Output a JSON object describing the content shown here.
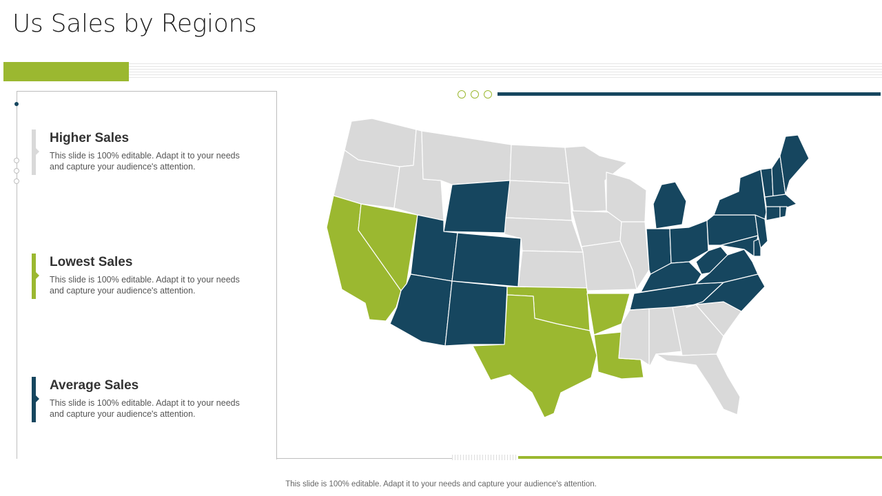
{
  "slide": {
    "title": "Us Sales by Regions",
    "footer": "This slide is 100% editable. Adapt it to your needs and capture your audience's attention."
  },
  "colors": {
    "accent_green": "#9bb830",
    "navy": "#16465f",
    "gray_state": "#d9d9d9",
    "gray_line": "#bdbdbd"
  },
  "legend": [
    {
      "title": "Higher Sales",
      "description": "This slide is 100% editable. Adapt it to your needs and capture your audience's attention.",
      "color": "#d9d9d9"
    },
    {
      "title": "Lowest Sales",
      "description": "This slide is 100% editable. Adapt it to your needs and capture your audience's attention.",
      "color": "#9bb830"
    },
    {
      "title": "Average Sales",
      "description": "This slide is 100% editable. Adapt it to your needs and capture your audience's attention.",
      "color": "#16465f"
    }
  ],
  "map": {
    "higher_sales_states": [
      "WA",
      "OR",
      "ID",
      "MT",
      "ND",
      "SD",
      "NE",
      "KS",
      "MN",
      "IA",
      "MO",
      "WI",
      "IL",
      "MS",
      "AL",
      "GA",
      "SC",
      "FL"
    ],
    "lowest_sales_states": [
      "CA",
      "NV",
      "TX",
      "OK",
      "AR",
      "LA"
    ],
    "average_sales_states": [
      "WY",
      "UT",
      "CO",
      "AZ",
      "NM",
      "MI",
      "IN",
      "OH",
      "KY",
      "TN",
      "WV",
      "VA",
      "NC",
      "PA",
      "NY",
      "VT",
      "NH",
      "ME",
      "MA",
      "CT",
      "RI",
      "NJ",
      "DE",
      "MD"
    ]
  }
}
